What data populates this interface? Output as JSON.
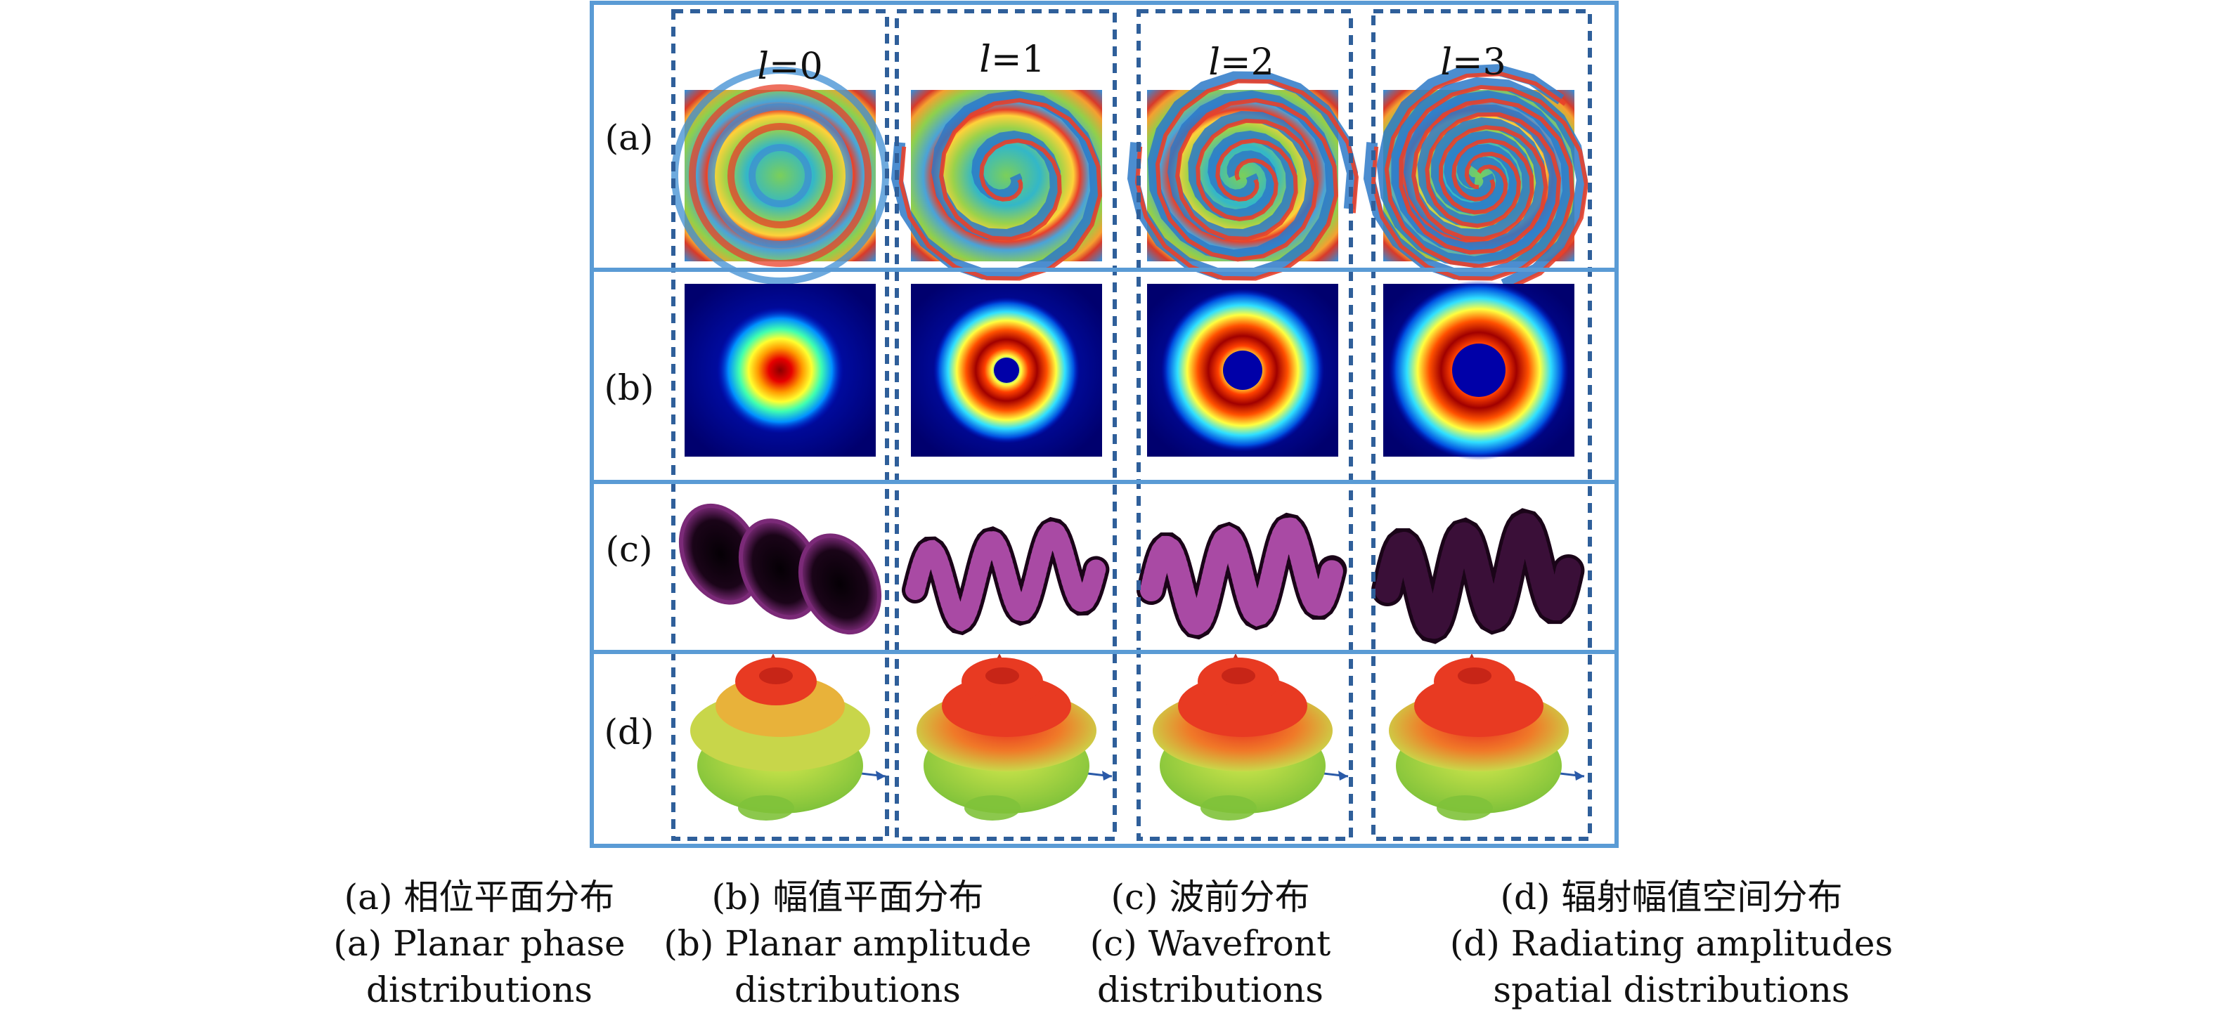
{
  "column_headers": [
    {
      "var": "l",
      "eq": "=0"
    },
    {
      "var": "l",
      "eq": "=1"
    },
    {
      "var": "l",
      "eq": "=2"
    },
    {
      "var": "l",
      "eq": "=3"
    }
  ],
  "row_labels": [
    "(a)",
    "(b)",
    "(c)",
    "(d)"
  ],
  "captions": [
    {
      "zh": "(a) 相位平面分布",
      "en1": "(a) Planar phase",
      "en2": "distributions"
    },
    {
      "zh": "(b) 幅值平面分布",
      "en1": "(b) Planar amplitude",
      "en2": "distributions"
    },
    {
      "zh": "(c) 波前分布",
      "en1": "(c) Wavefront",
      "en2": "distributions"
    },
    {
      "zh": "(d) 辐射幅值空间分布",
      "en1": "(d) Radiating amplitudes",
      "en2": "spatial distributions"
    }
  ],
  "colors": {
    "frame": "#5a9bd5",
    "dashed": "#2f5f9a",
    "wavefront": "#7b2a78",
    "amp_bg": "#00008f"
  }
}
